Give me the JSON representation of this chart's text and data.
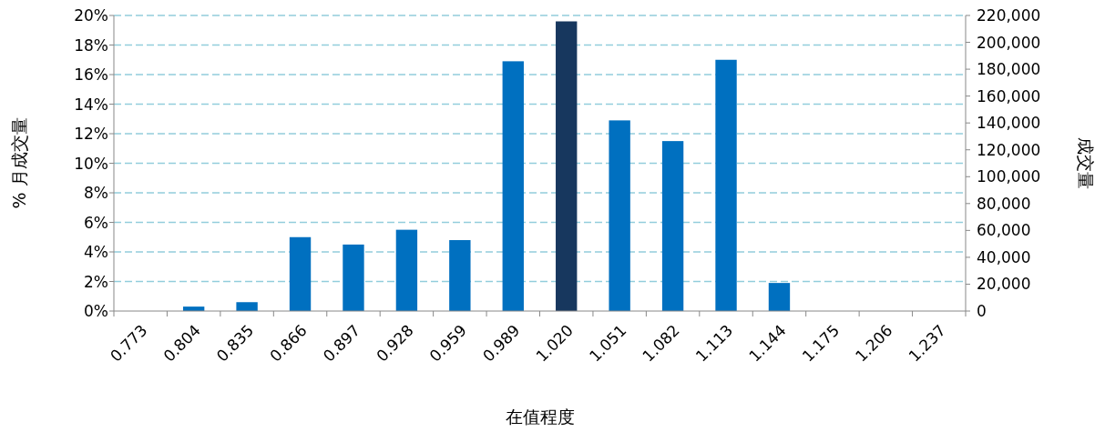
{
  "chart_data": {
    "type": "bar",
    "xlabel": "在值程度",
    "ylabel": "% 月成交量",
    "y2label": "成交量",
    "categories": [
      "0.773",
      "0.804",
      "0.835",
      "0.866",
      "0.897",
      "0.928",
      "0.959",
      "0.989",
      "1.020",
      "1.051",
      "1.082",
      "1.113",
      "1.144",
      "1.175",
      "1.206",
      "1.237"
    ],
    "values": [
      0,
      0.3,
      0.6,
      5.0,
      4.5,
      5.5,
      4.8,
      16.9,
      19.6,
      12.9,
      11.5,
      17.0,
      1.9,
      0,
      0,
      0
    ],
    "colors": [
      "#0070c0",
      "#0070c0",
      "#0070c0",
      "#0070c0",
      "#0070c0",
      "#0070c0",
      "#0070c0",
      "#0070c0",
      "#17375e",
      "#0070c0",
      "#0070c0",
      "#0070c0",
      "#0070c0",
      "#0070c0",
      "#0070c0",
      "#0070c0"
    ],
    "ylim": [
      0,
      20
    ],
    "yticks": [
      {
        "value": 0,
        "label": "0%"
      },
      {
        "value": 2,
        "label": "2%"
      },
      {
        "value": 4,
        "label": "4%"
      },
      {
        "value": 6,
        "label": "6%"
      },
      {
        "value": 8,
        "label": "8%"
      },
      {
        "value": 10,
        "label": "10%"
      },
      {
        "value": 12,
        "label": "12%"
      },
      {
        "value": 14,
        "label": "14%"
      },
      {
        "value": 16,
        "label": "16%"
      },
      {
        "value": 18,
        "label": "18%"
      },
      {
        "value": 20,
        "label": "20%"
      }
    ],
    "y2lim": [
      0,
      220000
    ],
    "y2ticks": [
      {
        "value": 0,
        "label": "0"
      },
      {
        "value": 20000,
        "label": "20,000"
      },
      {
        "value": 40000,
        "label": "40,000"
      },
      {
        "value": 60000,
        "label": "60,000"
      },
      {
        "value": 80000,
        "label": "80,000"
      },
      {
        "value": 100000,
        "label": "100,000"
      },
      {
        "value": 120000,
        "label": "120,000"
      },
      {
        "value": 140000,
        "label": "140,000"
      },
      {
        "value": 160000,
        "label": "160,000"
      },
      {
        "value": 180000,
        "label": "180,000"
      },
      {
        "value": 200000,
        "label": "200,000"
      },
      {
        "value": 220000,
        "label": "220,000"
      }
    ],
    "grid": "y"
  }
}
